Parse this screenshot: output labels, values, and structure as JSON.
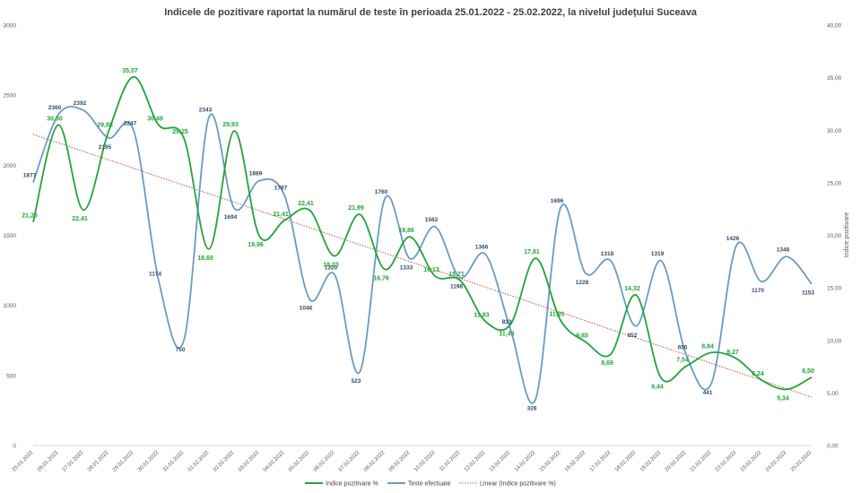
{
  "chart_data": {
    "type": "line",
    "title": "Indicele de pozitivare  raportat la numărul  de teste în perioada  25.01.2022 - 25.02.2022, la nivelul județului  Suceava",
    "categories": [
      "25.01.2022",
      "26.01.2022",
      "27.01.2022",
      "28.01.2022",
      "29.01.2022",
      "30.01.2022",
      "31.01.2022",
      "01.02.2022",
      "02.02.2022",
      "03.02.2022",
      "04.02.2022",
      "05.02.2022",
      "06.02.2022",
      "07.02.2022",
      "08.02.2022",
      "09.02.2022",
      "10.02.2022",
      "11.02.2022",
      "12.02.2022",
      "13.02.2022",
      "14.02.2022",
      "15.02.2022",
      "16.02.2022",
      "17.02.2022",
      "18.02.2022",
      "19.02.2022",
      "20.02.2022",
      "21.02.2022",
      "22.02.2022",
      "23.02.2022",
      "24.02.2022",
      "25.02.2022"
    ],
    "series": [
      {
        "name": "Indice pozitivare %",
        "axis": "right",
        "color": "#22a33a",
        "values": [
          21.26,
          30.5,
          22.41,
          29.88,
          35.07,
          30.49,
          29.25,
          18.69,
          29.93,
          19.96,
          21.41,
          22.41,
          18.03,
          21.99,
          16.76,
          19.86,
          16.13,
          15.71,
          11.83,
          11.49,
          17.81,
          11.91,
          9.85,
          8.69,
          14.32,
          6.44,
          7.54,
          8.84,
          8.27,
          6.24,
          5.34,
          6.5
        ],
        "labels": [
          "21,26",
          "30,50",
          "22,41",
          "29,88",
          "35,07",
          "30,49",
          "29,25",
          "18,69",
          "29,93",
          "19,96",
          "21,41",
          "22,41",
          "18,03",
          "21,99",
          "16,76",
          "19,86",
          "16,13",
          "15,71",
          "11,83",
          "11,49",
          "17,81",
          "11,91",
          "9,85",
          "8,69",
          "14,32",
          "6,44",
          "7,54",
          "8,84",
          "8,27",
          "6,24",
          "5,34",
          "6,50"
        ]
      },
      {
        "name": "Teste efectuate",
        "axis": "left",
        "color": "#6b9bc3",
        "values": [
          1877,
          2360,
          2392,
          2195,
          2247,
          1174,
          750,
          2343,
          1694,
          1889,
          1787,
          1046,
          1220,
          523,
          1760,
          1333,
          1562,
          1198,
          1366,
          833,
          328,
          1696,
          1228,
          1318,
          852,
          1319,
          650,
          441,
          1426,
          1170,
          1348,
          1153
        ],
        "labels": [
          "1877",
          "2360",
          "2392",
          "2195",
          "2247",
          "1174",
          "750",
          "2343",
          "1694",
          "1889",
          "1787",
          "1046",
          "1220",
          "523",
          "1760",
          "1333",
          "1562",
          "1198",
          "1366",
          "833",
          "328",
          "1696",
          "1228",
          "1318",
          "852",
          "1319",
          "650",
          "441",
          "1426",
          "1170",
          "1348",
          "1153"
        ]
      }
    ],
    "trendline": {
      "name": "Linear (Indice pozitivare %)",
      "color": "#c0504d",
      "start": 29.6,
      "end": 4.6
    },
    "y_left": {
      "min": 0,
      "max": 3000,
      "ticks": [
        "0",
        "500",
        "1000",
        "1500",
        "2000",
        "2500",
        "3000"
      ]
    },
    "y_right": {
      "min": 0,
      "max": 40,
      "label": "Indice pozitivare",
      "ticks": [
        "0,00",
        "5,00",
        "10,00",
        "15,00",
        "20,00",
        "25,00",
        "30,00",
        "35,00",
        "40,00"
      ]
    },
    "legend": {
      "position": "bottom",
      "items": [
        "Indice pozitivare %",
        "Teste efectuate",
        "Linear (Indice pozitivare %)"
      ]
    }
  }
}
